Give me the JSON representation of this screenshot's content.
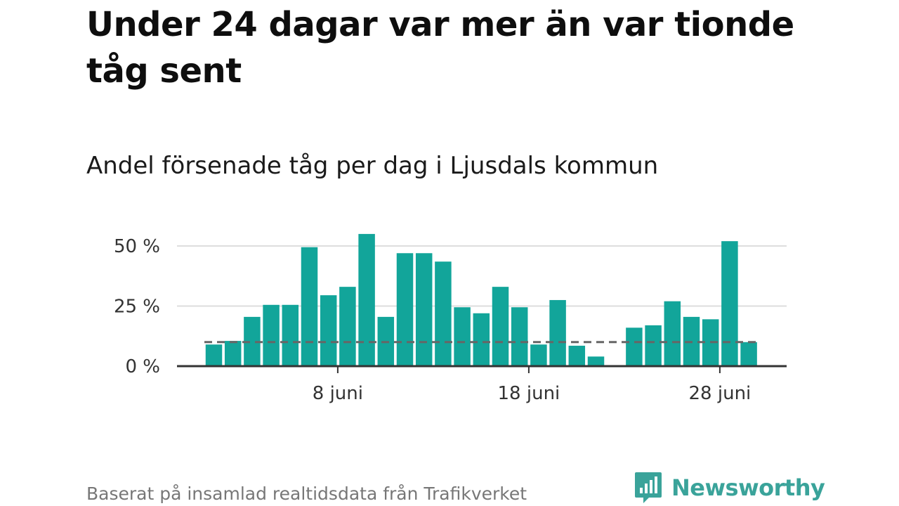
{
  "title": "Under 24 dagar var mer än var tionde tåg sent",
  "subtitle": "Andel försenade tåg per dag i Ljusdals kommun",
  "source": "Baserat på insamlad realtidsdata från Trafikverket",
  "brand": {
    "name": "Newsworthy",
    "logo_icon": "bar-chart-speech-bubble-icon",
    "color": "#3aa39a"
  },
  "colors": {
    "bar": "#12a59a",
    "axis": "#333333",
    "grid": "#dddddd",
    "reference": "#666666"
  },
  "chart_data": {
    "type": "bar",
    "title": "Andel försenade tåg per dag i Ljusdals kommun",
    "x_unit": "dag i juni",
    "x": [
      1,
      2,
      3,
      4,
      5,
      6,
      7,
      8,
      9,
      10,
      11,
      12,
      13,
      14,
      15,
      16,
      17,
      18,
      19,
      20,
      21,
      22,
      23,
      24,
      25,
      26,
      27,
      28,
      29,
      30
    ],
    "values": [
      9,
      10.5,
      20.5,
      25.5,
      25.5,
      49.5,
      29.5,
      33,
      55,
      20.5,
      47,
      47,
      43.5,
      24.5,
      22,
      33,
      24.5,
      9,
      27.5,
      8.5,
      4,
      null,
      16,
      17,
      27,
      20.5,
      19.5,
      52,
      10,
      null
    ],
    "reference_line": 10,
    "yticks": [
      {
        "value": 0,
        "label": "0 %"
      },
      {
        "value": 25,
        "label": "25 %"
      },
      {
        "value": 50,
        "label": "50 %"
      }
    ],
    "xticks": [
      {
        "value": 8,
        "label": "8 juni"
      },
      {
        "value": 18,
        "label": "18 juni"
      },
      {
        "value": 28,
        "label": "28 juni"
      }
    ],
    "ylim": [
      0,
      60
    ],
    "grid": true,
    "legend": "none"
  }
}
